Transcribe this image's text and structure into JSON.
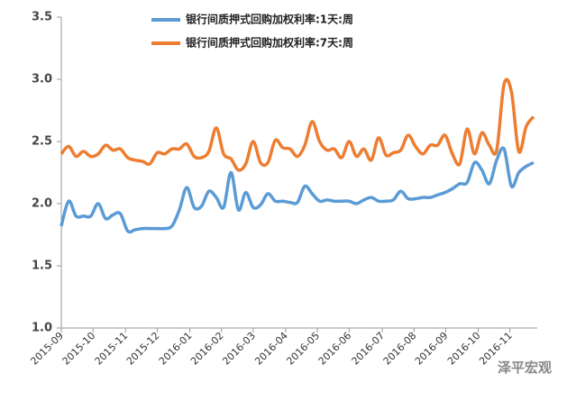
{
  "chart_data": {
    "type": "line",
    "x": [
      0,
      1,
      2,
      3,
      4,
      5,
      6,
      7,
      8,
      9,
      10,
      11,
      12,
      13,
      14,
      15,
      16,
      17,
      18,
      19,
      20,
      21,
      22,
      23,
      24,
      25,
      26,
      27,
      28,
      29,
      30,
      31,
      32,
      33,
      34,
      35,
      36,
      37,
      38,
      39,
      40,
      41,
      42,
      43,
      44,
      45,
      46,
      47,
      48,
      49,
      50,
      51,
      52,
      53,
      54,
      55,
      56,
      57,
      58,
      59,
      60,
      61,
      62,
      63,
      64
    ],
    "series": [
      {
        "name": "银行间质押式回购加权利率:1天:周",
        "color": "#5b9bd5",
        "values": [
          1.82,
          2.02,
          1.9,
          1.9,
          1.9,
          2.0,
          1.88,
          1.91,
          1.92,
          1.78,
          1.79,
          1.8,
          1.8,
          1.8,
          1.8,
          1.82,
          1.95,
          2.13,
          1.97,
          1.98,
          2.1,
          2.05,
          1.97,
          2.25,
          1.95,
          2.09,
          1.97,
          1.99,
          2.08,
          2.02,
          2.02,
          2.01,
          2.01,
          2.14,
          2.08,
          2.02,
          2.03,
          2.02,
          2.02,
          2.02,
          2.0,
          2.03,
          2.05,
          2.02,
          2.02,
          2.03,
          2.1,
          2.04,
          2.04,
          2.05,
          2.05,
          2.07,
          2.09,
          2.12,
          2.16,
          2.17,
          2.33,
          2.27,
          2.16,
          2.35,
          2.44,
          2.14,
          2.25,
          2.3,
          2.33
        ]
      },
      {
        "name": "银行间质押式回购加权利率:7天:周",
        "color": "#ed7d31",
        "values": [
          2.4,
          2.46,
          2.38,
          2.42,
          2.38,
          2.4,
          2.47,
          2.43,
          2.44,
          2.37,
          2.35,
          2.34,
          2.32,
          2.41,
          2.4,
          2.44,
          2.44,
          2.48,
          2.38,
          2.37,
          2.42,
          2.61,
          2.4,
          2.36,
          2.27,
          2.32,
          2.5,
          2.33,
          2.33,
          2.51,
          2.45,
          2.44,
          2.38,
          2.47,
          2.66,
          2.5,
          2.43,
          2.44,
          2.37,
          2.5,
          2.38,
          2.44,
          2.35,
          2.53,
          2.39,
          2.41,
          2.43,
          2.55,
          2.46,
          2.4,
          2.47,
          2.47,
          2.55,
          2.4,
          2.32,
          2.6,
          2.4,
          2.57,
          2.47,
          2.43,
          2.96,
          2.9,
          2.42,
          2.62,
          2.7
        ]
      }
    ],
    "xlim": [
      0,
      64.5
    ],
    "xticks": [
      {
        "value": 0,
        "label": "2015-09"
      },
      {
        "value": 4.3,
        "label": "2015-10"
      },
      {
        "value": 8.7,
        "label": "2015-11"
      },
      {
        "value": 13,
        "label": "2015-12"
      },
      {
        "value": 17.4,
        "label": "2016-01"
      },
      {
        "value": 21.7,
        "label": "2016-02"
      },
      {
        "value": 26,
        "label": "2016-03"
      },
      {
        "value": 30.4,
        "label": "2016-04"
      },
      {
        "value": 34.7,
        "label": "2016-05"
      },
      {
        "value": 39,
        "label": "2016-06"
      },
      {
        "value": 43.5,
        "label": "2016-07"
      },
      {
        "value": 47.8,
        "label": "2016-08"
      },
      {
        "value": 52.1,
        "label": "2016-09"
      },
      {
        "value": 56.5,
        "label": "2016-10"
      },
      {
        "value": 60.8,
        "label": "2016-11"
      }
    ],
    "ylim": [
      1.0,
      3.5
    ],
    "yticks": [
      {
        "value": 1.0,
        "label": "1.0"
      },
      1.5,
      {
        "value": 2.0,
        "label": "2.0"
      },
      2.5,
      {
        "value": 3.0,
        "label": "3.0"
      },
      3.5
    ],
    "grid": false,
    "watermark": "泽平宏观"
  }
}
